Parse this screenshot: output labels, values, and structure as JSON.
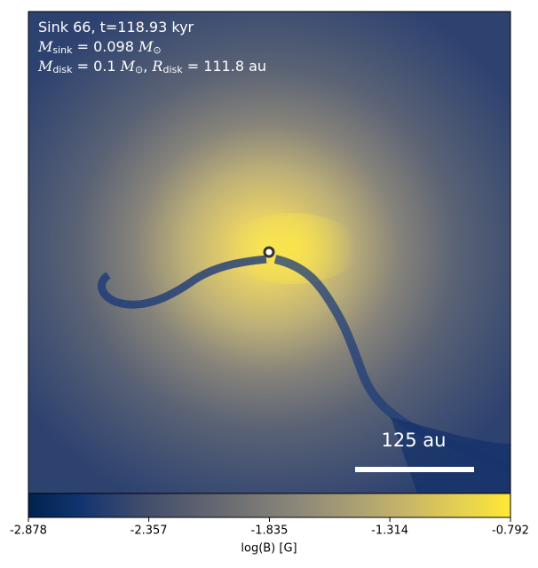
{
  "chart_data": {
    "type": "image",
    "annotations": [
      [
        {
          "text": "Sink 66, t=118.93 kyr",
          "style": "normal"
        }
      ],
      [
        {
          "text": "M",
          "style": "italic"
        },
        {
          "text": "sink",
          "style": "sub"
        },
        {
          "text": " = 0.098 ",
          "style": "normal"
        },
        {
          "text": "M",
          "style": "italic"
        },
        {
          "text": "⊙",
          "style": "sub"
        }
      ],
      [
        {
          "text": "M",
          "style": "italic"
        },
        {
          "text": "disk",
          "style": "sub"
        },
        {
          "text": " = 0.1 ",
          "style": "normal"
        },
        {
          "text": "M",
          "style": "italic"
        },
        {
          "text": "⊙",
          "style": "sub"
        },
        {
          "text": ", ",
          "style": "normal"
        },
        {
          "text": "R",
          "style": "italic"
        },
        {
          "text": "disk",
          "style": "sub"
        },
        {
          "text": " = 111.8 au",
          "style": "normal"
        }
      ]
    ],
    "scale_bar_label": "125 au",
    "colorbar": {
      "colormap": "cividis",
      "clim": [
        -2.878,
        -0.792
      ],
      "ticks": [
        -2.878,
        -2.357,
        -1.835,
        -1.314,
        -0.792
      ],
      "label": "log(B) [G]"
    }
  }
}
